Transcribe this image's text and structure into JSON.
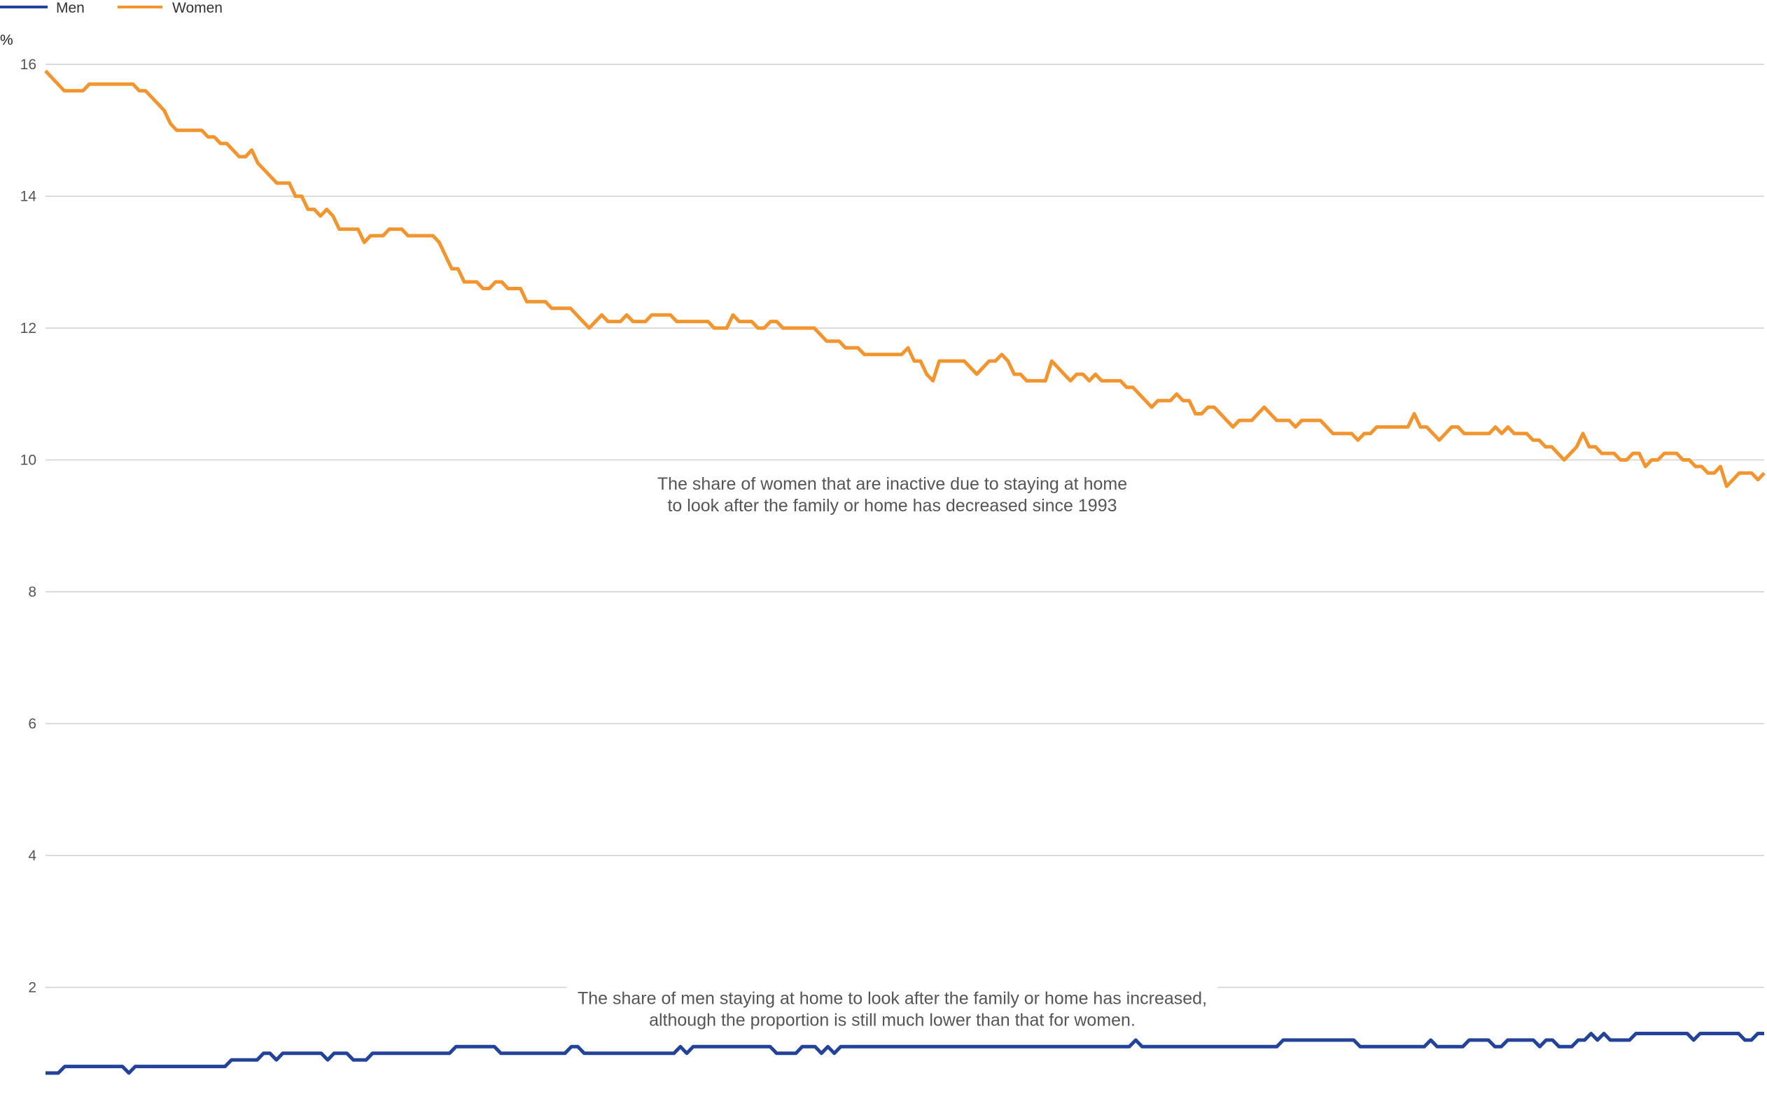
{
  "chart_data": {
    "type": "line",
    "ylabel": "%",
    "ylim": [
      0,
      16
    ],
    "yticks": [
      "16",
      "14",
      "12",
      "10",
      "8",
      "6",
      "4",
      "2"
    ],
    "grid": true,
    "legend_position": "top-left",
    "colors": {
      "Men": "#23429a",
      "Women": "#f3952f",
      "grid": "#cfcfcf"
    },
    "series": [
      {
        "name": "Men",
        "values": [
          0.7,
          0.7,
          0.7,
          0.8,
          0.8,
          0.8,
          0.8,
          0.8,
          0.8,
          0.8,
          0.8,
          0.8,
          0.8,
          0.7,
          0.8,
          0.8,
          0.8,
          0.8,
          0.8,
          0.8,
          0.8,
          0.8,
          0.8,
          0.8,
          0.8,
          0.8,
          0.8,
          0.8,
          0.8,
          0.9,
          0.9,
          0.9,
          0.9,
          0.9,
          1.0,
          1.0,
          0.9,
          1.0,
          1.0,
          1.0,
          1.0,
          1.0,
          1.0,
          1.0,
          0.9,
          1.0,
          1.0,
          1.0,
          0.9,
          0.9,
          0.9,
          1.0,
          1.0,
          1.0,
          1.0,
          1.0,
          1.0,
          1.0,
          1.0,
          1.0,
          1.0,
          1.0,
          1.0,
          1.0,
          1.1,
          1.1,
          1.1,
          1.1,
          1.1,
          1.1,
          1.1,
          1.0,
          1.0,
          1.0,
          1.0,
          1.0,
          1.0,
          1.0,
          1.0,
          1.0,
          1.0,
          1.0,
          1.1,
          1.1,
          1.0,
          1.0,
          1.0,
          1.0,
          1.0,
          1.0,
          1.0,
          1.0,
          1.0,
          1.0,
          1.0,
          1.0,
          1.0,
          1.0,
          1.0,
          1.1,
          1.0,
          1.1,
          1.1,
          1.1,
          1.1,
          1.1,
          1.1,
          1.1,
          1.1,
          1.1,
          1.1,
          1.1,
          1.1,
          1.1,
          1.0,
          1.0,
          1.0,
          1.0,
          1.1,
          1.1,
          1.1,
          1.0,
          1.1,
          1.0,
          1.1,
          1.1,
          1.1,
          1.1,
          1.1,
          1.1,
          1.1,
          1.1,
          1.1,
          1.1,
          1.1,
          1.1,
          1.1,
          1.1,
          1.1,
          1.1,
          1.1,
          1.1,
          1.1,
          1.1,
          1.1,
          1.1,
          1.1,
          1.1,
          1.1,
          1.1,
          1.1,
          1.1,
          1.1,
          1.1,
          1.1,
          1.1,
          1.1,
          1.1,
          1.1,
          1.1,
          1.1,
          1.1,
          1.1,
          1.1,
          1.1,
          1.1,
          1.1,
          1.1,
          1.1,
          1.1,
          1.2,
          1.1,
          1.1,
          1.1,
          1.1,
          1.1,
          1.1,
          1.1,
          1.1,
          1.1,
          1.1,
          1.1,
          1.1,
          1.1,
          1.1,
          1.1,
          1.1,
          1.1,
          1.1,
          1.1,
          1.1,
          1.1,
          1.1,
          1.2,
          1.2,
          1.2,
          1.2,
          1.2,
          1.2,
          1.2,
          1.2,
          1.2,
          1.2,
          1.2,
          1.2,
          1.1,
          1.1,
          1.1,
          1.1,
          1.1,
          1.1,
          1.1,
          1.1,
          1.1,
          1.1,
          1.1,
          1.2,
          1.1,
          1.1,
          1.1,
          1.1,
          1.1,
          1.2,
          1.2,
          1.2,
          1.2,
          1.1,
          1.1,
          1.2,
          1.2,
          1.2,
          1.2,
          1.2,
          1.1,
          1.2,
          1.2,
          1.1,
          1.1,
          1.1,
          1.2,
          1.2,
          1.3,
          1.2,
          1.3,
          1.2,
          1.2,
          1.2,
          1.2,
          1.3,
          1.3,
          1.3,
          1.3,
          1.3,
          1.3,
          1.3,
          1.3,
          1.3,
          1.2,
          1.3,
          1.3,
          1.3,
          1.3,
          1.3,
          1.3,
          1.3,
          1.2,
          1.2,
          1.3,
          1.3
        ]
      },
      {
        "name": "Women",
        "values": [
          15.9,
          15.8,
          15.7,
          15.6,
          15.6,
          15.6,
          15.6,
          15.7,
          15.7,
          15.7,
          15.7,
          15.7,
          15.7,
          15.7,
          15.7,
          15.6,
          15.6,
          15.5,
          15.4,
          15.3,
          15.1,
          15.0,
          15.0,
          15.0,
          15.0,
          15.0,
          14.9,
          14.9,
          14.8,
          14.8,
          14.7,
          14.6,
          14.6,
          14.7,
          14.5,
          14.4,
          14.3,
          14.2,
          14.2,
          14.2,
          14.0,
          14.0,
          13.8,
          13.8,
          13.7,
          13.8,
          13.7,
          13.5,
          13.5,
          13.5,
          13.5,
          13.3,
          13.4,
          13.4,
          13.4,
          13.5,
          13.5,
          13.5,
          13.4,
          13.4,
          13.4,
          13.4,
          13.4,
          13.3,
          13.1,
          12.9,
          12.9,
          12.7,
          12.7,
          12.7,
          12.6,
          12.6,
          12.7,
          12.7,
          12.6,
          12.6,
          12.6,
          12.4,
          12.4,
          12.4,
          12.4,
          12.3,
          12.3,
          12.3,
          12.3,
          12.2,
          12.1,
          12.0,
          12.1,
          12.2,
          12.1,
          12.1,
          12.1,
          12.2,
          12.1,
          12.1,
          12.1,
          12.2,
          12.2,
          12.2,
          12.2,
          12.1,
          12.1,
          12.1,
          12.1,
          12.1,
          12.1,
          12.0,
          12.0,
          12.0,
          12.2,
          12.1,
          12.1,
          12.1,
          12.0,
          12.0,
          12.1,
          12.1,
          12.0,
          12.0,
          12.0,
          12.0,
          12.0,
          12.0,
          11.9,
          11.8,
          11.8,
          11.8,
          11.7,
          11.7,
          11.7,
          11.6,
          11.6,
          11.6,
          11.6,
          11.6,
          11.6,
          11.6,
          11.7,
          11.5,
          11.5,
          11.3,
          11.2,
          11.5,
          11.5,
          11.5,
          11.5,
          11.5,
          11.4,
          11.3,
          11.4,
          11.5,
          11.5,
          11.6,
          11.5,
          11.3,
          11.3,
          11.2,
          11.2,
          11.2,
          11.2,
          11.5,
          11.4,
          11.3,
          11.2,
          11.3,
          11.3,
          11.2,
          11.3,
          11.2,
          11.2,
          11.2,
          11.2,
          11.1,
          11.1,
          11.0,
          10.9,
          10.8,
          10.9,
          10.9,
          10.9,
          11.0,
          10.9,
          10.9,
          10.7,
          10.7,
          10.8,
          10.8,
          10.7,
          10.6,
          10.5,
          10.6,
          10.6,
          10.6,
          10.7,
          10.8,
          10.7,
          10.6,
          10.6,
          10.6,
          10.5,
          10.6,
          10.6,
          10.6,
          10.6,
          10.5,
          10.4,
          10.4,
          10.4,
          10.4,
          10.3,
          10.4,
          10.4,
          10.5,
          10.5,
          10.5,
          10.5,
          10.5,
          10.5,
          10.7,
          10.5,
          10.5,
          10.4,
          10.3,
          10.4,
          10.5,
          10.5,
          10.4,
          10.4,
          10.4,
          10.4,
          10.4,
          10.5,
          10.4,
          10.5,
          10.4,
          10.4,
          10.4,
          10.3,
          10.3,
          10.2,
          10.2,
          10.1,
          10.0,
          10.1,
          10.2,
          10.4,
          10.2,
          10.2,
          10.1,
          10.1,
          10.1,
          10.0,
          10.0,
          10.1,
          10.1,
          9.9,
          10.0,
          10.0,
          10.1,
          10.1,
          10.1,
          10.0,
          10.0,
          9.9,
          9.9,
          9.8,
          9.8,
          9.9,
          9.6,
          9.7,
          9.8,
          9.8,
          9.8,
          9.7,
          9.8
        ]
      }
    ],
    "annotations": [
      {
        "lines": [
          "The share of women that are inactive due to staying at home",
          "to look after the family or home has decreased since 1993"
        ],
        "series": "Women",
        "y": 9.6
      },
      {
        "lines": [
          "The share of men staying at home to look after the family or home has increased,",
          "although the proportion is still much lower than that for women."
        ],
        "series": "Men",
        "y": 1.8
      }
    ]
  }
}
